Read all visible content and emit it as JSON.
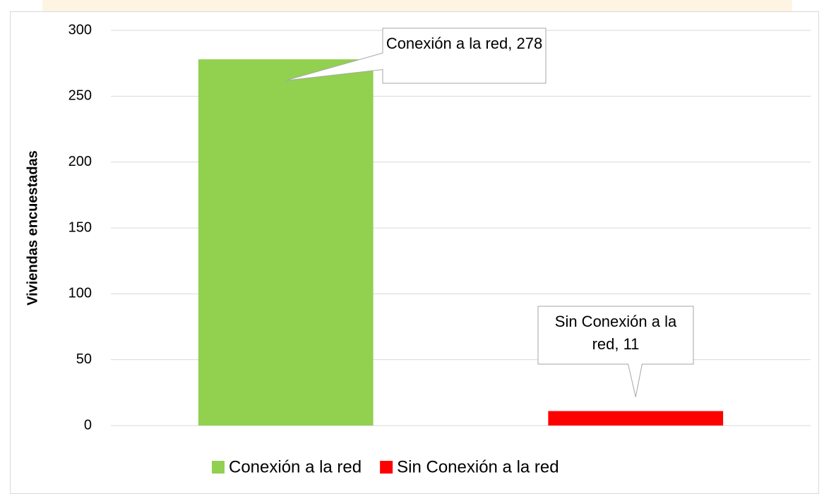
{
  "chart_data": {
    "type": "bar",
    "y_label": "Viviendas encuestadas",
    "categories": [
      null
    ],
    "series": [
      {
        "name": "Conexión a la red",
        "color": "#92d050",
        "values": [
          278
        ],
        "value_labels": [
          "Conexión a la red, 278"
        ]
      },
      {
        "name": "Sin Conexión a la red",
        "color": "#ff0000",
        "values": [
          11
        ],
        "value_labels": [
          "Sin Conexión a la red, 11"
        ]
      }
    ],
    "ylim": [
      0,
      300
    ],
    "yticks": [
      0,
      50,
      100,
      150,
      200,
      250,
      300
    ],
    "grid": true,
    "legend": "bottom"
  }
}
